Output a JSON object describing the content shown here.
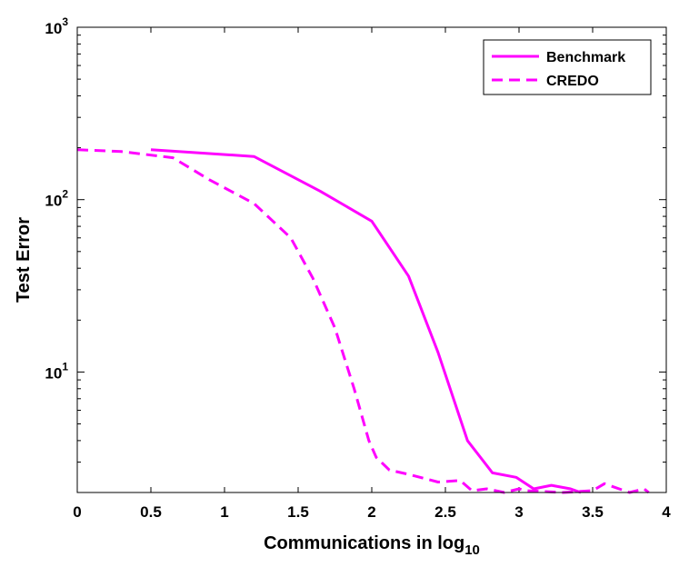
{
  "chart_data": {
    "type": "line",
    "title": "",
    "xlabel": "Communications in log",
    "xlabel_subscript": "10",
    "ylabel": "Test Error",
    "xscale": "linear",
    "yscale": "log",
    "xlim": [
      0,
      4
    ],
    "ylim": [
      2,
      1000
    ],
    "xticks": [
      0,
      0.5,
      1,
      1.5,
      2,
      2.5,
      3,
      3.5,
      4
    ],
    "xtick_labels": [
      "0",
      "0.5",
      "1",
      "1.5",
      "2",
      "2.5",
      "3",
      "3.5",
      "4"
    ],
    "yticks": [
      {
        "value": 10,
        "base": "10",
        "exp": "1"
      },
      {
        "value": 100,
        "base": "10",
        "exp": "2"
      },
      {
        "value": 1000,
        "base": "10",
        "exp": "3"
      }
    ],
    "legend_position": "top-right",
    "color": "#ff00ff",
    "series": [
      {
        "name": "Benchmark",
        "style": "solid",
        "x": [
          0.5,
          1.2,
          1.65,
          2.0,
          2.25,
          2.45,
          2.65,
          2.82,
          2.98,
          3.1,
          3.22,
          3.35,
          3.42
        ],
        "y": [
          195,
          178,
          112,
          75,
          36,
          13,
          4.0,
          2.6,
          2.45,
          2.1,
          2.2,
          2.1,
          2.0
        ]
      },
      {
        "name": "CREDO",
        "style": "dashed",
        "x": [
          0,
          0.3,
          0.65,
          0.9,
          1.2,
          1.45,
          1.6,
          1.75,
          1.88,
          1.98,
          2.03,
          2.12,
          2.25,
          2.45,
          2.6,
          2.68,
          2.78,
          2.9,
          3.0,
          3.05,
          3.3,
          3.5,
          3.58,
          3.75,
          3.85,
          3.88
        ],
        "y": [
          195,
          190,
          175,
          130,
          95,
          60,
          35,
          18,
          8.0,
          4.0,
          3.2,
          2.7,
          2.55,
          2.3,
          2.35,
          2.05,
          2.1,
          2.0,
          2.1,
          2.05,
          2.0,
          2.05,
          2.25,
          2.0,
          2.1,
          2.0
        ]
      }
    ]
  }
}
